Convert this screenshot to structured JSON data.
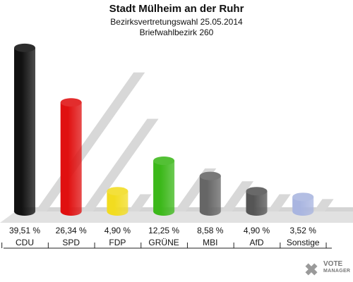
{
  "header": {
    "title": "Stadt Mülheim an der Ruhr",
    "subtitle1": "Bezirksvertretungswahl 25.05.2014",
    "subtitle2": "Briefwahlbezirk 260"
  },
  "logo": {
    "line1": "VOTE",
    "line2": "MANAGER"
  },
  "chart_data": {
    "type": "bar",
    "title": "Stadt Mülheim an der Ruhr",
    "subtitle": "Bezirksvertretungswahl 25.05.2014 / Briefwahlbezirk 260",
    "categories": [
      "CDU",
      "SPD",
      "FDP",
      "GRÜNE",
      "MBI",
      "AfD",
      "Sonstige"
    ],
    "values": [
      39.51,
      26.34,
      4.9,
      12.25,
      8.58,
      4.9,
      3.52
    ],
    "value_labels": [
      "39,51 %",
      "26,34 %",
      "4,90 %",
      "12,25 %",
      "8,58 %",
      "4,90 %",
      "3,52 %"
    ],
    "colors": [
      "#111111",
      "#e01010",
      "#f2dc20",
      "#3cb81a",
      "#666666",
      "#555555",
      "#a9b5e0"
    ],
    "ylim": [
      0,
      40
    ],
    "grid": false,
    "legend": "none"
  }
}
